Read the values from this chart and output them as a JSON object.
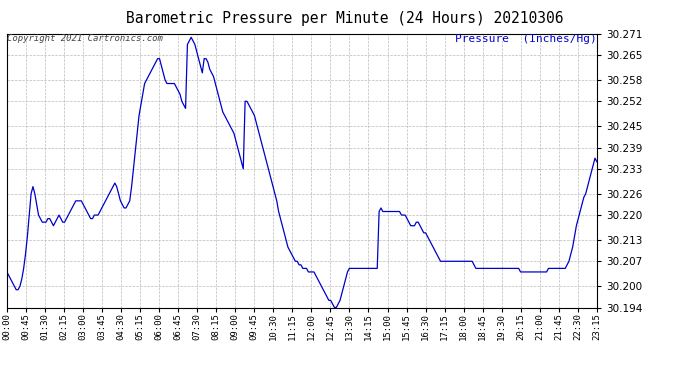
{
  "title": "Barometric Pressure per Minute (24 Hours) 20210306",
  "ylabel": "Pressure  (Inches/Hg)",
  "copyright_text": "Copyright 2021 Cartronics.com",
  "line_color": "#0000cc",
  "background_color": "#ffffff",
  "grid_color": "#bbbbbb",
  "ylim": [
    30.194,
    30.271
  ],
  "yticks": [
    30.194,
    30.2,
    30.207,
    30.213,
    30.22,
    30.226,
    30.233,
    30.239,
    30.245,
    30.252,
    30.258,
    30.265,
    30.271
  ],
  "xtick_labels": [
    "00:00",
    "00:45",
    "01:30",
    "02:15",
    "03:00",
    "03:45",
    "04:30",
    "05:15",
    "06:00",
    "06:45",
    "07:30",
    "08:15",
    "09:00",
    "09:45",
    "10:30",
    "11:15",
    "12:00",
    "12:45",
    "13:30",
    "14:15",
    "15:00",
    "15:45",
    "16:30",
    "17:15",
    "18:00",
    "18:45",
    "19:30",
    "20:15",
    "21:00",
    "21:45",
    "22:30",
    "23:15"
  ],
  "pressure_values": [
    30.204,
    30.203,
    30.202,
    30.201,
    30.2,
    30.199,
    30.199,
    30.2,
    30.202,
    30.205,
    30.209,
    30.214,
    30.22,
    30.226,
    30.228,
    30.226,
    30.223,
    30.22,
    30.219,
    30.218,
    30.218,
    30.218,
    30.219,
    30.219,
    30.218,
    30.217,
    30.218,
    30.219,
    30.22,
    30.219,
    30.218,
    30.218,
    30.219,
    30.22,
    30.221,
    30.222,
    30.223,
    30.224,
    30.224,
    30.224,
    30.224,
    30.223,
    30.222,
    30.221,
    30.22,
    30.219,
    30.219,
    30.22,
    30.22,
    30.22,
    30.221,
    30.222,
    30.223,
    30.224,
    30.225,
    30.226,
    30.227,
    30.228,
    30.229,
    30.228,
    30.226,
    30.224,
    30.223,
    30.222,
    30.222,
    30.223,
    30.224,
    30.228,
    30.233,
    30.238,
    30.243,
    30.248,
    30.251,
    30.254,
    30.257,
    30.258,
    30.259,
    30.26,
    30.261,
    30.262,
    30.263,
    30.264,
    30.264,
    30.262,
    30.26,
    30.258,
    30.257,
    30.257,
    30.257,
    30.257,
    30.257,
    30.256,
    30.255,
    30.254,
    30.252,
    30.251,
    30.25,
    30.268,
    30.269,
    30.27,
    30.269,
    30.268,
    30.266,
    30.264,
    30.262,
    30.26,
    30.264,
    30.264,
    30.263,
    30.261,
    30.26,
    30.259,
    30.257,
    30.255,
    30.253,
    30.251,
    30.249,
    30.248,
    30.247,
    30.246,
    30.245,
    30.244,
    30.243,
    30.241,
    30.239,
    30.237,
    30.235,
    30.233,
    30.252,
    30.252,
    30.251,
    30.25,
    30.249,
    30.248,
    30.246,
    30.244,
    30.242,
    30.24,
    30.238,
    30.236,
    30.234,
    30.232,
    30.23,
    30.228,
    30.226,
    30.224,
    30.221,
    30.219,
    30.217,
    30.215,
    30.213,
    30.211,
    30.21,
    30.209,
    30.208,
    30.207,
    30.207,
    30.206,
    30.206,
    30.205,
    30.205,
    30.205,
    30.204,
    30.204,
    30.204,
    30.204,
    30.203,
    30.202,
    30.201,
    30.2,
    30.199,
    30.198,
    30.197,
    30.196,
    30.196,
    30.195,
    30.194,
    30.194,
    30.195,
    30.196,
    30.198,
    30.2,
    30.202,
    30.204,
    30.205,
    30.205,
    30.205,
    30.205,
    30.205,
    30.205,
    30.205,
    30.205,
    30.205,
    30.205,
    30.205,
    30.205,
    30.205,
    30.205,
    30.205,
    30.205,
    30.221,
    30.222,
    30.221,
    30.221,
    30.221,
    30.221,
    30.221,
    30.221,
    30.221,
    30.221,
    30.221,
    30.221,
    30.22,
    30.22,
    30.22,
    30.219,
    30.218,
    30.217,
    30.217,
    30.217,
    30.218,
    30.218,
    30.217,
    30.216,
    30.215,
    30.215,
    30.214,
    30.213,
    30.212,
    30.211,
    30.21,
    30.209,
    30.208,
    30.207,
    30.207,
    30.207,
    30.207,
    30.207,
    30.207,
    30.207,
    30.207,
    30.207,
    30.207,
    30.207,
    30.207,
    30.207,
    30.207,
    30.207,
    30.207,
    30.207,
    30.207,
    30.206,
    30.205,
    30.205,
    30.205,
    30.205,
    30.205,
    30.205,
    30.205,
    30.205,
    30.205,
    30.205,
    30.205,
    30.205,
    30.205,
    30.205,
    30.205,
    30.205,
    30.205,
    30.205,
    30.205,
    30.205,
    30.205,
    30.205,
    30.205,
    30.205,
    30.204,
    30.204,
    30.204,
    30.204,
    30.204,
    30.204,
    30.204,
    30.204,
    30.204,
    30.204,
    30.204,
    30.204,
    30.204,
    30.204,
    30.204,
    30.205,
    30.205,
    30.205,
    30.205,
    30.205,
    30.205,
    30.205,
    30.205,
    30.205,
    30.205,
    30.206,
    30.207,
    30.209,
    30.211,
    30.214,
    30.217,
    30.219,
    30.221,
    30.223,
    30.225,
    30.226,
    30.228,
    30.23,
    30.232,
    30.234,
    30.236,
    30.235
  ]
}
